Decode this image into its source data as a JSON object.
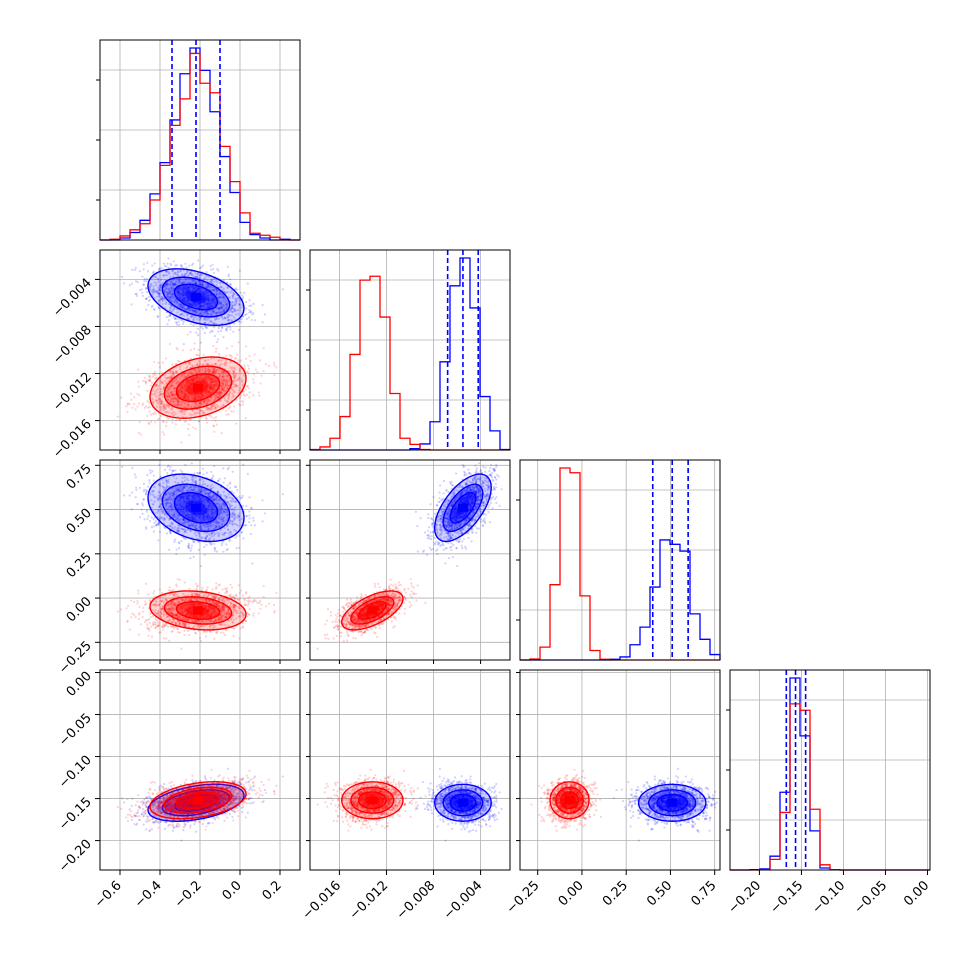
{
  "chart_data": {
    "type": "corner",
    "grid": true,
    "series": [
      {
        "name": "",
        "color": "#0000ff",
        "params": [
          {
            "mean": -0.22,
            "sd": 0.12
          },
          {
            "mean": -0.0055,
            "sd": 0.0012
          },
          {
            "mean": 0.51,
            "sd": 0.095
          },
          {
            "mean": -0.155,
            "sd": 0.011
          }
        ],
        "corr": [
          [
            0,
            1,
            -0.4
          ],
          [
            0,
            2,
            -0.3
          ],
          [
            0,
            3,
            0.4
          ],
          [
            1,
            2,
            0.6
          ],
          [
            1,
            3,
            0.0
          ],
          [
            2,
            3,
            0.0
          ]
        ],
        "quantiles": [
          [
            -0.34,
            -0.22,
            -0.1
          ],
          [
            -0.0068,
            -0.0055,
            -0.0042
          ],
          [
            0.4,
            0.51,
            0.6
          ],
          [
            -0.168,
            -0.157,
            -0.145
          ]
        ]
      },
      {
        "name": "",
        "color": "#ff0000",
        "params": [
          {
            "mean": -0.21,
            "sd": 0.12
          },
          {
            "mean": -0.0132,
            "sd": 0.0013
          },
          {
            "mean": -0.07,
            "sd": 0.055
          },
          {
            "mean": -0.152,
            "sd": 0.011
          }
        ],
        "corr": [
          [
            0,
            1,
            0.3
          ],
          [
            0,
            2,
            -0.2
          ],
          [
            0,
            3,
            0.35
          ],
          [
            1,
            2,
            0.6
          ],
          [
            1,
            3,
            0.0
          ],
          [
            2,
            3,
            0.0
          ]
        ],
        "quantiles": []
      }
    ],
    "axes": [
      {
        "range": [
          -0.7,
          0.3
        ],
        "ticks": [
          -0.6,
          -0.4,
          -0.2,
          0.0,
          0.2
        ],
        "tick_labels": [
          "−0.6",
          "−0.4",
          "−0.2",
          "0.0",
          "0.2"
        ]
      },
      {
        "range": [
          -0.0185,
          -0.0015
        ],
        "ticks": [
          -0.016,
          -0.012,
          -0.008,
          -0.004
        ],
        "tick_labels": [
          "−0.016",
          "−0.012",
          "−0.008",
          "−0.004"
        ]
      },
      {
        "range": [
          -0.35,
          0.78
        ],
        "ticks": [
          -0.25,
          0.0,
          0.25,
          0.5,
          0.75
        ],
        "tick_labels": [
          "−0.25",
          "0.00",
          "0.25",
          "0.50",
          "0.75"
        ]
      },
      {
        "range": [
          -0.235,
          0.003
        ],
        "ticks": [
          -0.2,
          -0.15,
          -0.1,
          -0.05,
          0.0
        ],
        "tick_labels": [
          "−0.20",
          "−0.15",
          "−0.10",
          "−0.05",
          "0.00"
        ]
      }
    ],
    "samples_per_series": 1600,
    "histogram_bins": 20
  }
}
